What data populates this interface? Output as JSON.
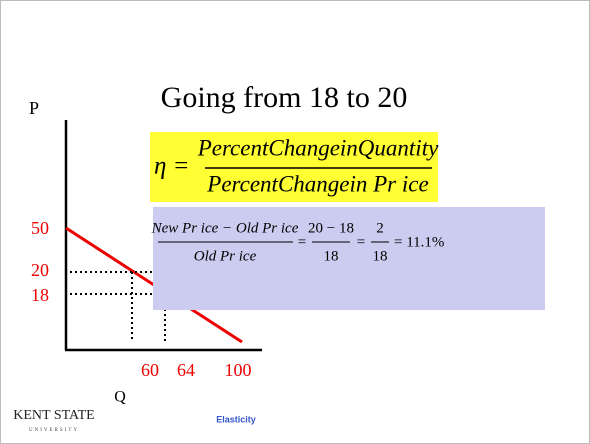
{
  "title": "Going from 18 to 20",
  "graph": {
    "y_label": "P",
    "x_label": "Q",
    "y_ticks": [
      "50",
      "20",
      "18"
    ],
    "x_ticks": [
      "60",
      "64",
      "100"
    ]
  },
  "formula": {
    "lhs": "η =",
    "numerator": "PercentChangeinQuantity",
    "denominator": "PercentChangein Pr ice"
  },
  "calc": {
    "numerator_1": "New Pr ice − Old Pr ice",
    "denominator_1": "Old Pr ice",
    "eq_1": "=",
    "numerator_2": "20 − 18",
    "denominator_2": "18",
    "eq_2": "=",
    "numerator_3": "2",
    "denominator_3": "18",
    "result": "= 11.1%"
  },
  "footer": {
    "logo": "KENT STATE",
    "logo_sub": "UNIVERSITY",
    "label": "Elasticity"
  }
}
